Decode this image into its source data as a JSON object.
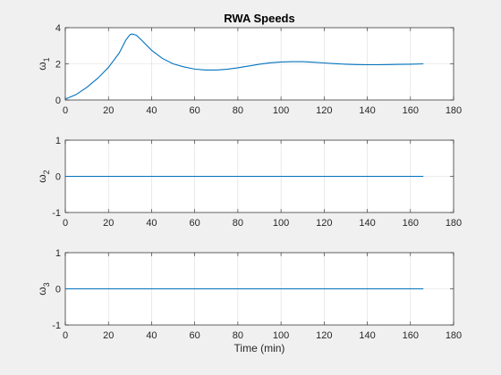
{
  "chart_data": [
    {
      "type": "line",
      "title": "RWA Speeds",
      "xlabel": "",
      "ylabel": "ω",
      "ylabel_sub": "1",
      "xlim": [
        0,
        180
      ],
      "ylim": [
        0,
        4
      ],
      "xticks": [
        0,
        20,
        40,
        60,
        80,
        100,
        120,
        140,
        160,
        180
      ],
      "yticks": [
        0,
        2,
        4
      ],
      "grid": true,
      "series": [
        {
          "name": "omega1",
          "color": "#0072bd",
          "x": [
            0,
            5,
            10,
            15,
            20,
            25,
            28,
            30,
            31,
            33,
            35,
            40,
            45,
            50,
            55,
            60,
            65,
            70,
            75,
            80,
            85,
            90,
            95,
            100,
            105,
            110,
            115,
            120,
            125,
            130,
            135,
            140,
            145,
            150,
            155,
            160,
            166
          ],
          "y": [
            0.05,
            0.3,
            0.7,
            1.2,
            1.8,
            2.6,
            3.3,
            3.62,
            3.65,
            3.58,
            3.35,
            2.75,
            2.3,
            2.0,
            1.83,
            1.71,
            1.66,
            1.66,
            1.7,
            1.78,
            1.88,
            1.98,
            2.06,
            2.1,
            2.12,
            2.12,
            2.09,
            2.05,
            2.01,
            1.98,
            1.96,
            1.95,
            1.95,
            1.96,
            1.97,
            1.98,
            2.0
          ]
        }
      ]
    },
    {
      "type": "line",
      "title": "",
      "xlabel": "",
      "ylabel": "ω",
      "ylabel_sub": "2",
      "xlim": [
        0,
        180
      ],
      "ylim": [
        -1,
        1
      ],
      "xticks": [
        0,
        20,
        40,
        60,
        80,
        100,
        120,
        140,
        160,
        180
      ],
      "yticks": [
        -1,
        0,
        1
      ],
      "grid": true,
      "series": [
        {
          "name": "omega2",
          "color": "#0072bd",
          "x": [
            0,
            166
          ],
          "y": [
            0,
            0
          ]
        }
      ]
    },
    {
      "type": "line",
      "title": "",
      "xlabel": "Time (min)",
      "ylabel": "ω",
      "ylabel_sub": "3",
      "xlim": [
        0,
        180
      ],
      "ylim": [
        -1,
        1
      ],
      "xticks": [
        0,
        20,
        40,
        60,
        80,
        100,
        120,
        140,
        160,
        180
      ],
      "yticks": [
        -1,
        0,
        1
      ],
      "grid": true,
      "series": [
        {
          "name": "omega3",
          "color": "#0072bd",
          "x": [
            0,
            166
          ],
          "y": [
            0,
            0
          ]
        }
      ]
    }
  ]
}
